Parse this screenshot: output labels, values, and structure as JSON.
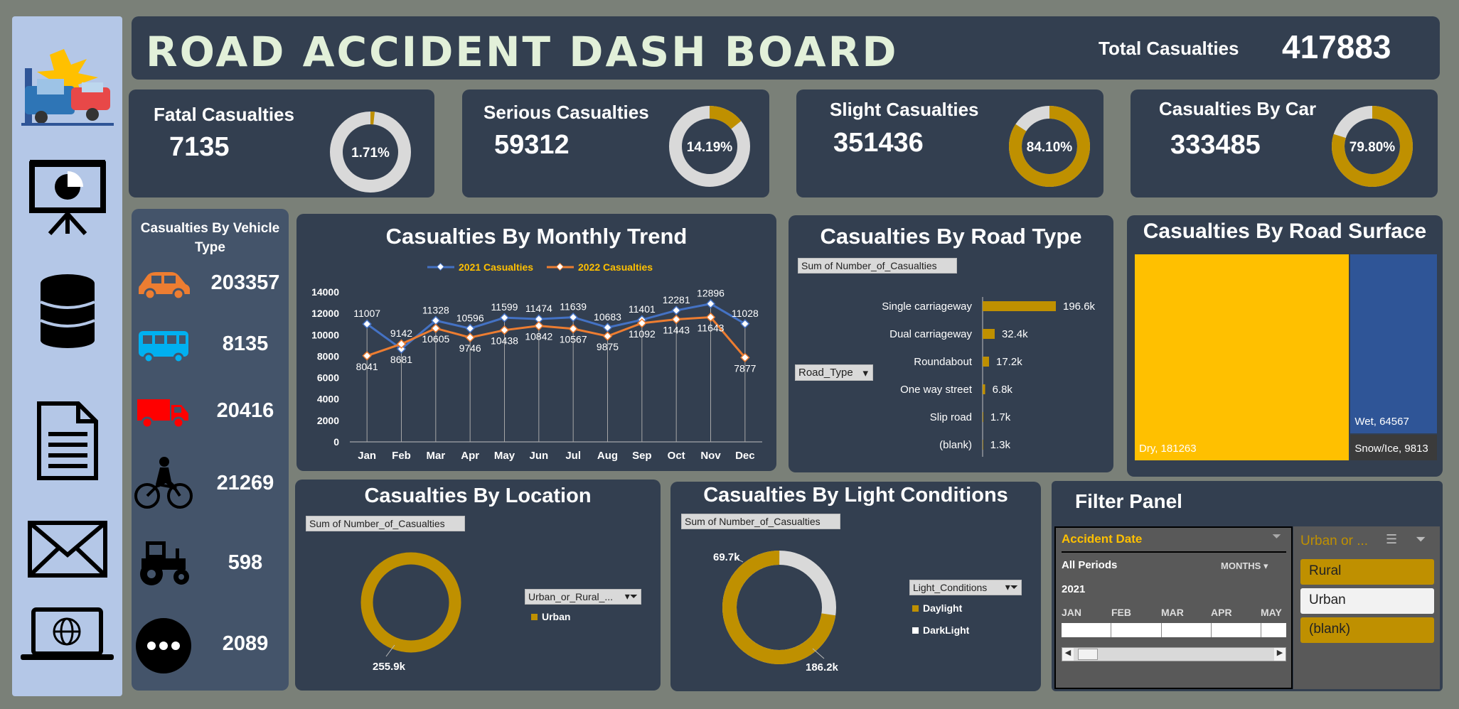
{
  "header": {
    "title": "ROAD ACCIDENT DASH BOARD",
    "total_label": "Total Casualties",
    "total_value": "417883"
  },
  "sidebar": {
    "icons": [
      "car-crash-icon",
      "presentation-chart-icon",
      "database-icon",
      "document-icon",
      "mail-icon",
      "laptop-globe-icon"
    ]
  },
  "kpis": {
    "fatal": {
      "label": "Fatal Casualties",
      "value": "7135",
      "pct_label": "1.71%",
      "pct": 1.71
    },
    "serious": {
      "label": "Serious Casualties",
      "value": "59312",
      "pct_label": "14.19%",
      "pct": 14.19
    },
    "slight": {
      "label": "Slight Casualties",
      "value": "351436",
      "pct_label": "84.10%",
      "pct": 84.1
    },
    "car": {
      "label": "Casualties By Car",
      "value": "333485",
      "pct_label": "79.80%",
      "pct": 79.8
    }
  },
  "colors": {
    "panel": "#333f50",
    "gold": "#bf9000",
    "ring_bg": "#d9d9d9",
    "series_2021": "#4472c4",
    "series_2022": "#ed7d31",
    "legend_text": "#ffc000",
    "dry": "#ffc000",
    "wet": "#2f5597",
    "snow": "#3b3b3b"
  },
  "vehicle_type": {
    "title": "Casualties By Vehicle Type",
    "rows": [
      {
        "icon": "car-icon",
        "value": "203357",
        "color": "#ed7d31"
      },
      {
        "icon": "bus-icon",
        "value": "8135",
        "color": "#00b0f0"
      },
      {
        "icon": "truck-icon",
        "value": "20416",
        "color": "#ff0000"
      },
      {
        "icon": "bicycle-icon",
        "value": "21269",
        "color": "#000000"
      },
      {
        "icon": "tractor-icon",
        "value": "598",
        "color": "#000000"
      },
      {
        "icon": "more-icon",
        "value": "2089",
        "color": "#000000"
      }
    ]
  },
  "monthly": {
    "title": "Casualties By Monthly Trend",
    "legend": [
      "2021 Casualties",
      "2022 Casualties"
    ],
    "y_ticks": [
      "0",
      "2000",
      "4000",
      "6000",
      "8000",
      "10000",
      "12000",
      "14000"
    ]
  },
  "road_type": {
    "title": "Casualties By Road Type",
    "pivot_label": "Sum of Number_of_Casualties",
    "filter_label": "Road_Type"
  },
  "road_surface": {
    "title": "Casualties By Road Surface"
  },
  "location": {
    "title": "Casualties By Location",
    "pivot_label": "Sum of Number_of_Casualties",
    "filter_label": "Urban_or_Rural_...",
    "legend": "Urban",
    "value_label": "255.9k"
  },
  "light": {
    "title": "Casualties By Light Conditions",
    "pivot_label": "Sum of Number_of_Casualties",
    "filter_label": "Light_Conditions",
    "legend": [
      "Daylight",
      "DarkLight"
    ],
    "daylight_label": "186.2k",
    "dark_label": "69.7k"
  },
  "filter_panel": {
    "title": "Filter Panel",
    "timeline": {
      "header": "Accident Date",
      "periods": "All Periods",
      "unit": "MONTHS",
      "year": "2021",
      "months": [
        "JAN",
        "FEB",
        "MAR",
        "APR",
        "MAY"
      ]
    },
    "slicer": {
      "header": "Urban or ...",
      "items": [
        {
          "label": "Rural",
          "selected": true
        },
        {
          "label": "Urban",
          "selected": false
        },
        {
          "label": "(blank)",
          "selected": true
        }
      ]
    }
  },
  "chart_data": [
    {
      "type": "line",
      "title": "Casualties By Monthly Trend",
      "categories": [
        "Jan",
        "Feb",
        "Mar",
        "Apr",
        "May",
        "Jun",
        "Jul",
        "Aug",
        "Sep",
        "Oct",
        "Nov",
        "Dec"
      ],
      "series": [
        {
          "name": "2021 Casualties",
          "values": [
            11007,
            8681,
            11328,
            10596,
            11599,
            11474,
            11639,
            10683,
            11401,
            12281,
            12896,
            11028
          ]
        },
        {
          "name": "2022 Casualties",
          "values": [
            8041,
            9142,
            10605,
            9746,
            10438,
            10842,
            10567,
            9875,
            11092,
            11443,
            11643,
            7877
          ]
        }
      ],
      "ylim": [
        0,
        14000
      ],
      "grid": false,
      "legend": "top"
    },
    {
      "type": "bar",
      "title": "Casualties By Road Type",
      "orientation": "horizontal",
      "categories": [
        "Single carriageway",
        "Dual carriageway",
        "Roundabout",
        "One way street",
        "Slip road",
        "(blank)"
      ],
      "values": [
        196600,
        32400,
        17200,
        6800,
        1700,
        1300
      ],
      "labels": [
        "196.6k",
        "32.4k",
        "17.2k",
        "6.8k",
        "1.7k",
        "1.3k"
      ]
    },
    {
      "type": "treemap",
      "title": "Casualties By Road Surface",
      "categories": [
        "Dry",
        "Wet",
        "Snow/Ice"
      ],
      "values": [
        181263,
        64567,
        9813
      ],
      "labels": [
        "Dry, 181263",
        "Wet, 64567",
        "Snow/Ice, 9813"
      ]
    },
    {
      "type": "pie",
      "title": "Casualties By Location",
      "categories": [
        "Urban"
      ],
      "values": [
        255900
      ],
      "labels": [
        "255.9k"
      ]
    },
    {
      "type": "pie",
      "title": "Casualties By Light Conditions",
      "categories": [
        "Daylight",
        "DarkLight"
      ],
      "values": [
        186200,
        69700
      ],
      "labels": [
        "186.2k",
        "69.7k"
      ]
    }
  ]
}
